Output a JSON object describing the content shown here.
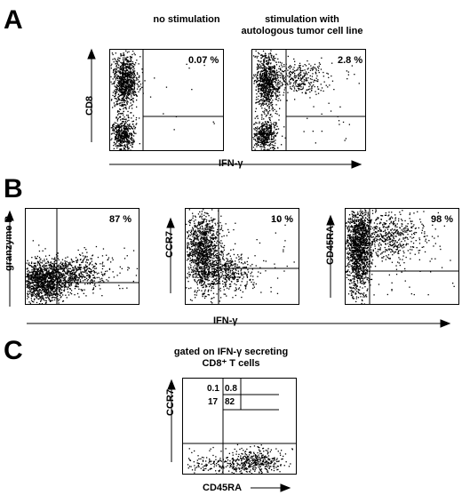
{
  "panels": {
    "A": {
      "letter": "A",
      "titles": [
        "no stimulation",
        "stimulation with\nautologous tumor cell line"
      ],
      "ylabel": "CD8",
      "xlabel": "IFN-γ"
    },
    "B": {
      "letter": "B",
      "xlabel": "IFN-γ",
      "ylabels": [
        "granzyme B",
        "CCR7",
        "CD45RA"
      ]
    },
    "C": {
      "letter": "C",
      "title": "gated on IFN-γ secreting\nCD8⁺ T cells",
      "ylabel": "CCR7",
      "xlabel": "CD45RA"
    }
  },
  "chart_data": [
    {
      "type": "scatter",
      "panel": "A",
      "title": "no stimulation",
      "xlabel": "IFN-γ",
      "ylabel": "CD8",
      "quadrant_percent": "0.07 %",
      "upper_right_fraction": 0.0007
    },
    {
      "type": "scatter",
      "panel": "A",
      "title": "stimulation with autologous tumor cell line",
      "xlabel": "IFN-γ",
      "ylabel": "CD8",
      "quadrant_percent": "2.8 %",
      "upper_right_fraction": 0.028
    },
    {
      "type": "scatter",
      "panel": "B",
      "xlabel": "IFN-γ",
      "ylabel": "granzyme B",
      "quadrant_percent": "87 %",
      "upper_right_fraction": 0.87
    },
    {
      "type": "scatter",
      "panel": "B",
      "xlabel": "IFN-γ",
      "ylabel": "CCR7",
      "quadrant_percent": "10 %",
      "upper_right_fraction": 0.1
    },
    {
      "type": "scatter",
      "panel": "B",
      "xlabel": "IFN-γ",
      "ylabel": "CD45RA",
      "quadrant_percent": "98 %",
      "upper_right_fraction": 0.98
    },
    {
      "type": "scatter",
      "panel": "C",
      "title": "gated on IFN-γ secreting CD8⁺ T cells",
      "xlabel": "CD45RA",
      "ylabel": "CCR7",
      "quadrants": {
        "upper_left": "0.1",
        "upper_right": "0.8",
        "lower_left": "17",
        "lower_right": "82"
      }
    }
  ]
}
